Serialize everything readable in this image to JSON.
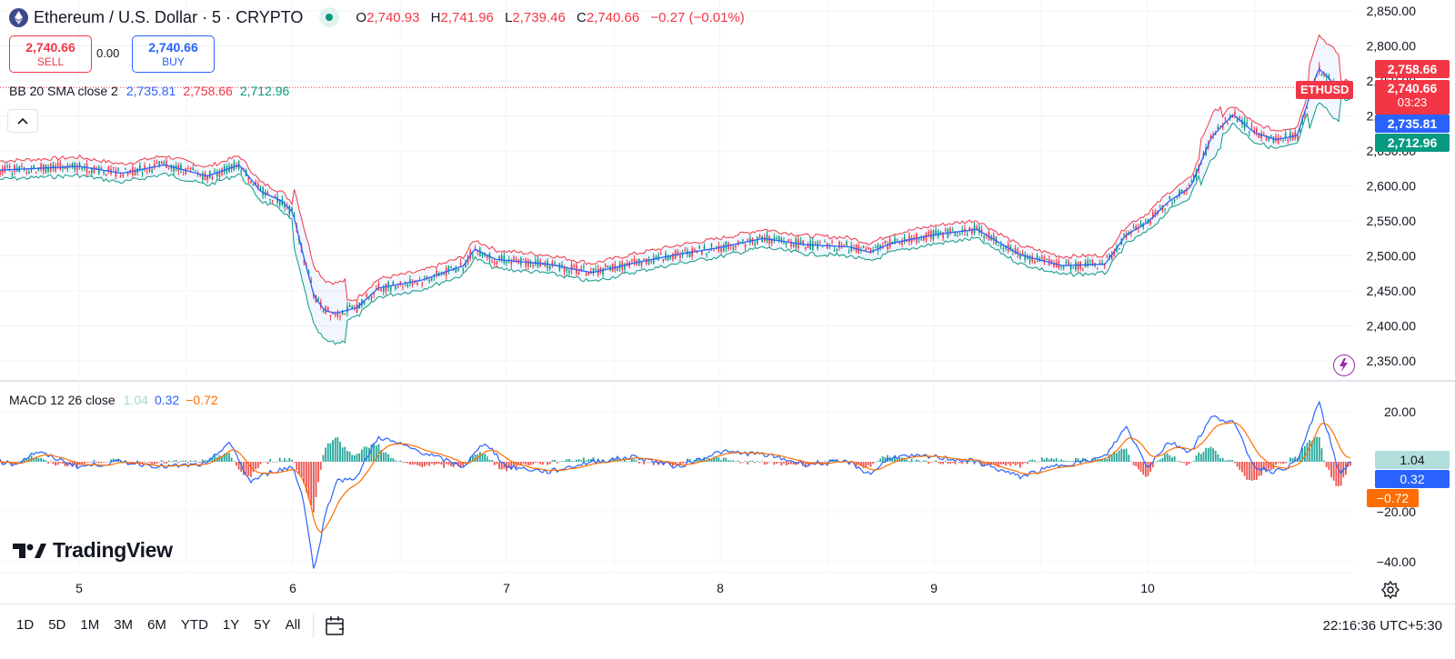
{
  "header": {
    "symbol_title": "Ethereum / U.S. Dollar · 5 · CRYPTO",
    "ohlc": {
      "o_label": "O",
      "o_value": "2,740.93",
      "h_label": "H",
      "h_value": "2,741.96",
      "l_label": "L",
      "l_value": "2,739.46",
      "c_label": "C",
      "c_value": "2,740.66",
      "change": "−0.27 (−0.01%)"
    }
  },
  "trade": {
    "sell_price": "2,740.66",
    "sell_label": "SELL",
    "spread": "0.00",
    "buy_price": "2,740.66",
    "buy_label": "BUY"
  },
  "indicators": {
    "bb": {
      "label": "BB 20 SMA close 2",
      "basis": "2,735.81",
      "upper": "2,758.66",
      "lower": "2,712.96"
    },
    "macd": {
      "label": "MACD 12 26 close",
      "hist": "1.04",
      "macd": "0.32",
      "signal": "−0.72"
    }
  },
  "price_axis": {
    "ticks": [
      "2,850.00",
      "2,800.00",
      "2,750.00",
      "2,700.00",
      "2,650.00",
      "2,600.00",
      "2,550.00",
      "2,500.00",
      "2,450.00",
      "2,400.00",
      "2,350.00"
    ],
    "symbol_tag": "ETHUSD",
    "upper_tag": "2,758.66",
    "last_price_tag": "2,740.66",
    "countdown": "03:23",
    "basis_tag": "2,735.81",
    "lower_tag": "2,712.96"
  },
  "macd_axis": {
    "ticks": [
      "20.00",
      "−20.00",
      "−40.00"
    ],
    "hist_tag": "1.04",
    "macd_tag": "0.32",
    "signal_tag": "−0.72"
  },
  "time_axis": {
    "labels": [
      "5",
      "6",
      "7",
      "8",
      "9",
      "10"
    ]
  },
  "toolbar": {
    "ranges": [
      "1D",
      "5D",
      "1M",
      "3M",
      "6M",
      "YTD",
      "1Y",
      "5Y",
      "All"
    ],
    "clock": "22:16:36 UTC+5:30"
  },
  "brand": {
    "name": "TradingView"
  },
  "colors": {
    "up": "#089981",
    "down": "#f23645",
    "bb_upper": "#f23645",
    "bb_basis": "#2962ff",
    "bb_lower": "#089981",
    "macd_line": "#2962ff",
    "signal_line": "#ff6d00",
    "hist_up": "#26a69a",
    "hist_down": "#ef5350"
  },
  "icons": [
    "ethereum-logo-icon",
    "market-open-dot-icon",
    "collapse-chevron-icon",
    "lightning-icon",
    "settings-icon",
    "date-range-icon"
  ],
  "chart_data": {
    "type": "candlestick",
    "symbol": "ETHUSD",
    "interval": "5",
    "x_labels": [
      "5",
      "6",
      "7",
      "8",
      "9",
      "10"
    ],
    "price_ylim": [
      2330,
      2860
    ],
    "bb_basis_path": [
      [
        4.0,
        2648
      ],
      [
        4.1,
        2640
      ],
      [
        4.2,
        2658
      ],
      [
        4.3,
        2632
      ],
      [
        4.4,
        2628
      ],
      [
        4.5,
        2640
      ],
      [
        4.6,
        2622
      ],
      [
        4.8,
        2625
      ],
      [
        5.0,
        2628
      ],
      [
        5.2,
        2618
      ],
      [
        5.4,
        2630
      ],
      [
        5.6,
        2614
      ],
      [
        5.75,
        2630
      ],
      [
        5.85,
        2592
      ],
      [
        5.95,
        2578
      ],
      [
        6.0,
        2562
      ],
      [
        6.05,
        2500
      ],
      [
        6.1,
        2442
      ],
      [
        6.15,
        2422
      ],
      [
        6.2,
        2418
      ],
      [
        6.3,
        2426
      ],
      [
        6.4,
        2454
      ],
      [
        6.6,
        2465
      ],
      [
        6.8,
        2486
      ],
      [
        6.85,
        2510
      ],
      [
        6.95,
        2495
      ],
      [
        7.2,
        2488
      ],
      [
        7.4,
        2476
      ],
      [
        7.6,
        2490
      ],
      [
        7.8,
        2502
      ],
      [
        8.0,
        2512
      ],
      [
        8.2,
        2525
      ],
      [
        8.4,
        2516
      ],
      [
        8.6,
        2513
      ],
      [
        8.7,
        2505
      ],
      [
        8.8,
        2518
      ],
      [
        9.0,
        2530
      ],
      [
        9.2,
        2538
      ],
      [
        9.4,
        2502
      ],
      [
        9.6,
        2486
      ],
      [
        9.8,
        2488
      ],
      [
        9.9,
        2530
      ],
      [
        10.0,
        2548
      ],
      [
        10.1,
        2578
      ],
      [
        10.2,
        2598
      ],
      [
        10.3,
        2670
      ],
      [
        10.4,
        2702
      ],
      [
        10.5,
        2676
      ],
      [
        10.6,
        2666
      ],
      [
        10.7,
        2672
      ],
      [
        10.8,
        2768
      ],
      [
        10.9,
        2738
      ],
      [
        10.95,
        2736
      ]
    ],
    "macd_ylim": [
      -46,
      26
    ],
    "macd_path": [
      [
        4.0,
        0
      ],
      [
        4.1,
        -3
      ],
      [
        4.2,
        12
      ],
      [
        4.3,
        -6
      ],
      [
        4.4,
        -2
      ],
      [
        4.5,
        2
      ],
      [
        4.7,
        -1
      ],
      [
        4.8,
        4
      ],
      [
        5.0,
        -2
      ],
      [
        5.2,
        0
      ],
      [
        5.4,
        -2
      ],
      [
        5.6,
        -1
      ],
      [
        5.7,
        8
      ],
      [
        5.8,
        -8
      ],
      [
        5.9,
        -4
      ],
      [
        6.0,
        -2
      ],
      [
        6.05,
        -15
      ],
      [
        6.1,
        -44
      ],
      [
        6.15,
        -22
      ],
      [
        6.2,
        -8
      ],
      [
        6.3,
        -6
      ],
      [
        6.4,
        10
      ],
      [
        6.6,
        4
      ],
      [
        6.8,
        -2
      ],
      [
        6.9,
        8
      ],
      [
        7.0,
        -2
      ],
      [
        7.2,
        -4
      ],
      [
        7.4,
        0
      ],
      [
        7.6,
        2
      ],
      [
        7.8,
        -2
      ],
      [
        8.0,
        4
      ],
      [
        8.2,
        3
      ],
      [
        8.4,
        -1
      ],
      [
        8.6,
        0
      ],
      [
        8.7,
        -5
      ],
      [
        8.8,
        2
      ],
      [
        9.0,
        2
      ],
      [
        9.2,
        0
      ],
      [
        9.4,
        -6
      ],
      [
        9.6,
        -1
      ],
      [
        9.7,
        0
      ],
      [
        9.8,
        2
      ],
      [
        9.9,
        14
      ],
      [
        10.0,
        -2
      ],
      [
        10.1,
        8
      ],
      [
        10.2,
        4
      ],
      [
        10.3,
        18
      ],
      [
        10.4,
        16
      ],
      [
        10.5,
        -2
      ],
      [
        10.6,
        -4
      ],
      [
        10.7,
        0
      ],
      [
        10.8,
        24
      ],
      [
        10.9,
        -5
      ],
      [
        10.95,
        0.32
      ]
    ],
    "signal_last": -0.72,
    "hist_last": 1.04
  }
}
